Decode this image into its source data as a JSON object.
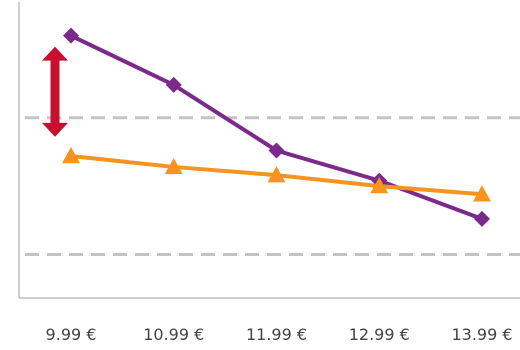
{
  "chart_data": {
    "type": "line",
    "categories": [
      "9.99 €",
      "10.99 €",
      "11.99 €",
      "12.99 €",
      "13.99 €"
    ],
    "series": [
      {
        "color": "#7b2a8c",
        "marker": "diamond",
        "values": [
          100,
          82,
          58,
          47,
          33
        ]
      },
      {
        "color": "#f7941d",
        "marker": "triangle",
        "values": [
          56,
          52,
          49,
          45,
          42
        ]
      }
    ],
    "reference_lines": [
      70,
      20
    ],
    "ylim": [
      7,
      105
    ],
    "grid": false,
    "annotation": {
      "type": "double-arrow",
      "color": "#c8102e",
      "category_index": 0,
      "from": 96,
      "to": 63
    }
  }
}
